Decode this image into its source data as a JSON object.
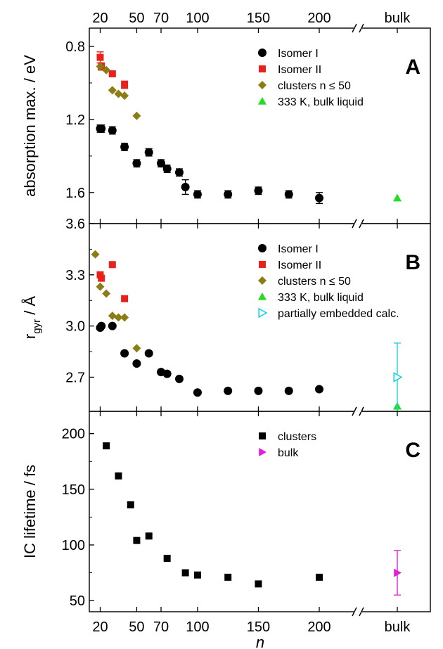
{
  "chart_data": [
    {
      "type": "scatter",
      "panel": "A",
      "panel_label": "A",
      "ylabel": "absorption max. / eV",
      "y_inverted": true,
      "ylim": [
        0.7,
        1.77
      ],
      "yticks": [
        0.8,
        1.2,
        1.6
      ],
      "ytick_labels": [
        "0.8",
        "1.2",
        "1.6"
      ],
      "legend_position": "top-right",
      "series": [
        {
          "name": "Isomer I",
          "marker": "circle",
          "color": "#000000",
          "x": [
            20,
            21,
            30,
            40,
            50,
            60,
            70,
            75,
            85,
            90,
            100,
            125,
            150,
            175,
            200
          ],
          "y": [
            1.25,
            1.25,
            1.26,
            1.35,
            1.44,
            1.38,
            1.44,
            1.47,
            1.49,
            1.57,
            1.61,
            1.61,
            1.59,
            1.61,
            1.63
          ],
          "err": [
            0.02,
            0.02,
            0.02,
            0.02,
            0.02,
            0.02,
            0.02,
            0.02,
            0.02,
            0.04,
            0.02,
            0.02,
            0.02,
            0.02,
            0.03
          ]
        },
        {
          "name": "Isomer II",
          "marker": "square",
          "color": "#e8211c",
          "x": [
            20,
            21,
            30,
            40
          ],
          "y": [
            0.86,
            0.91,
            0.95,
            1.01
          ],
          "err": [
            0.03,
            0.02,
            0.01,
            0.02
          ]
        },
        {
          "name": "clusters n ≤ 50",
          "marker": "diamond",
          "color": "#8b7d14",
          "x": [
            20,
            25,
            30,
            35,
            40,
            50
          ],
          "y": [
            0.91,
            0.93,
            1.04,
            1.06,
            1.07,
            1.18
          ]
        },
        {
          "name": "333 K, bulk liquid",
          "marker": "triangle-up",
          "color": "#22dd22",
          "x": [
            "bulk"
          ],
          "y": [
            1.63
          ]
        }
      ]
    },
    {
      "type": "scatter",
      "panel": "B",
      "panel_label": "B",
      "ylabel_main": "r",
      "ylabel_sub": "gyr",
      "ylabel_unit": " / Å",
      "ylim": [
        2.5,
        3.6
      ],
      "yticks": [
        2.7,
        3.0,
        3.3,
        3.6
      ],
      "ytick_labels": [
        "2.7",
        "3.0",
        "3.3",
        "3.6"
      ],
      "legend_position": "top-right",
      "series": [
        {
          "name": "Isomer I",
          "marker": "circle",
          "color": "#000000",
          "x": [
            20,
            21,
            30,
            40,
            50,
            60,
            70,
            75,
            85,
            100,
            125,
            150,
            175,
            200
          ],
          "y": [
            2.99,
            3.0,
            3.0,
            2.84,
            2.78,
            2.84,
            2.73,
            2.72,
            2.69,
            2.61,
            2.62,
            2.62,
            2.62,
            2.63
          ]
        },
        {
          "name": "Isomer II",
          "marker": "square",
          "color": "#e8211c",
          "x": [
            20,
            21,
            30,
            40
          ],
          "y": [
            3.3,
            3.28,
            3.36,
            3.16
          ]
        },
        {
          "name": "clusters n ≤ 50",
          "marker": "diamond",
          "color": "#8b7d14",
          "x": [
            16,
            20,
            25,
            30,
            35,
            40,
            50
          ],
          "y": [
            3.42,
            3.23,
            3.19,
            3.06,
            3.05,
            3.05,
            2.87
          ]
        },
        {
          "name": "333 K, bulk liquid",
          "marker": "triangle-up",
          "color": "#22dd22",
          "x": [
            "bulk"
          ],
          "y": [
            2.53
          ]
        },
        {
          "name": "partially embedded calc.",
          "marker": "triangle-right-open",
          "color": "#1fd3e0",
          "x": [
            "bulk"
          ],
          "y": [
            2.7
          ],
          "err": [
            0.2
          ]
        }
      ]
    },
    {
      "type": "scatter",
      "panel": "C",
      "panel_label": "C",
      "ylabel": "IC lifetime / fs",
      "ylim": [
        40,
        220
      ],
      "yticks": [
        50,
        100,
        150,
        200
      ],
      "ytick_labels": [
        "50",
        "100",
        "150",
        "200"
      ],
      "legend_position": "top-right",
      "series": [
        {
          "name": "clusters",
          "marker": "square",
          "color": "#000000",
          "x": [
            25,
            35,
            45,
            50,
            60,
            75,
            90,
            100,
            125,
            150,
            200
          ],
          "y": [
            189,
            162,
            136,
            104,
            108,
            88,
            75,
            73,
            71,
            65,
            71
          ]
        },
        {
          "name": "bulk",
          "marker": "triangle-right",
          "color": "#e01fd9",
          "x": [
            "bulk"
          ],
          "y": [
            75
          ],
          "err": [
            20
          ]
        }
      ]
    }
  ],
  "x_axis": {
    "xlabel": "n",
    "tick_values": [
      20,
      50,
      70,
      100,
      150,
      200
    ],
    "tick_labels": [
      "20",
      "50",
      "70",
      "100",
      "150",
      "200"
    ],
    "top_tick_labels": [
      "20",
      "50",
      "70",
      "100",
      "150",
      "200",
      "bulk"
    ],
    "bulk_label": "bulk",
    "break_symbol": "//",
    "break_after": 200
  }
}
